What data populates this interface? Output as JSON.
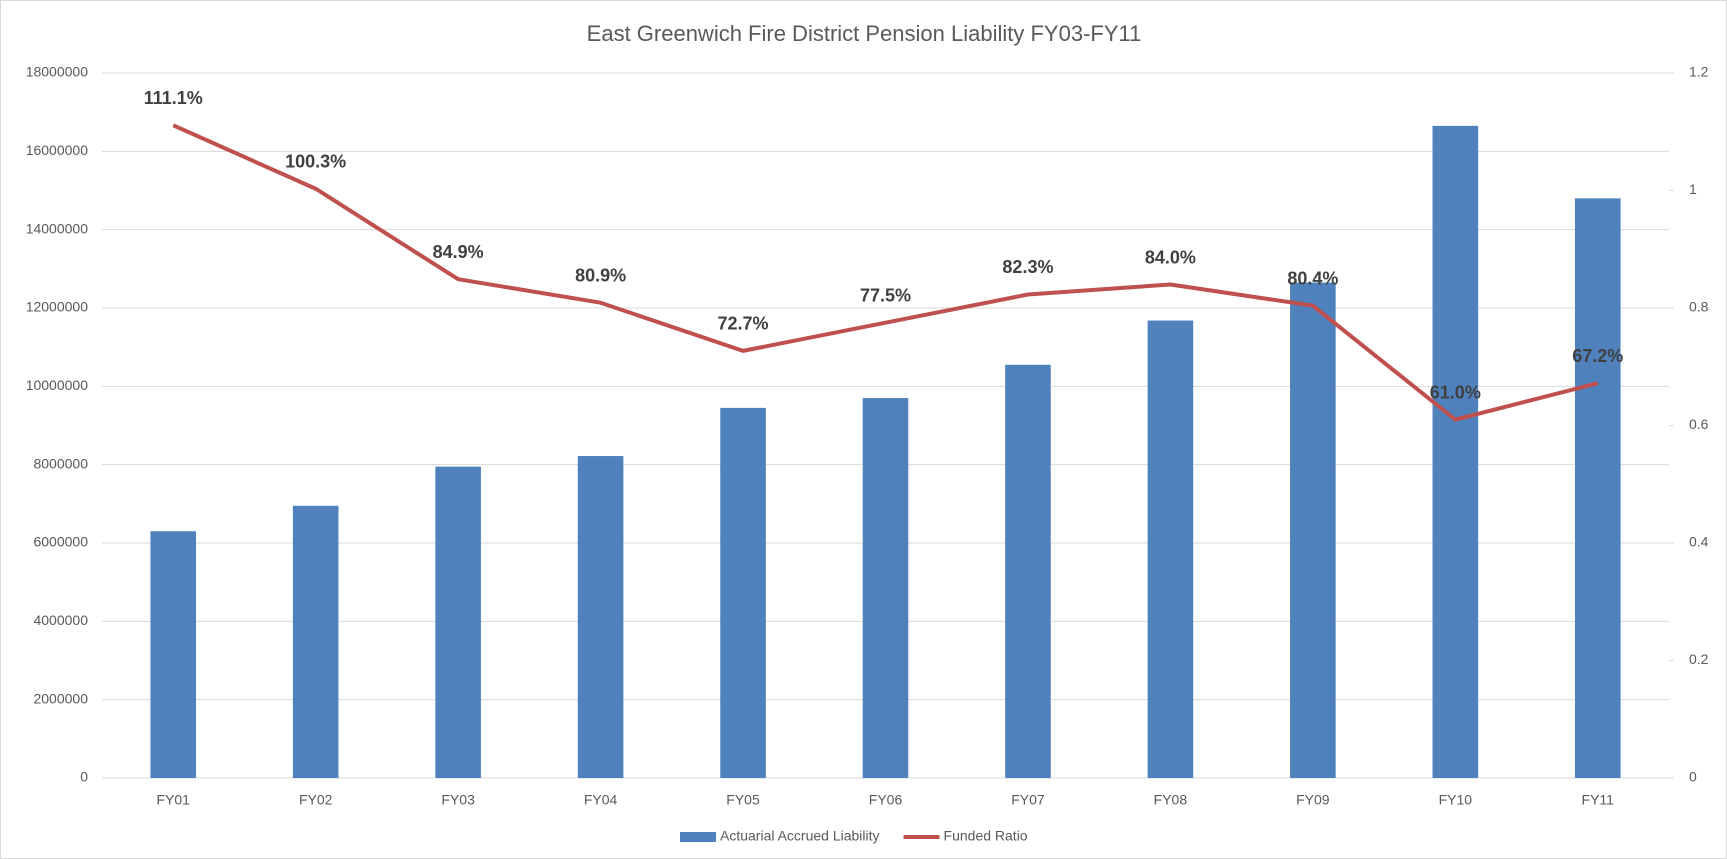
{
  "chart_data": {
    "type": "bar_line",
    "title": "East Greenwich Fire District Pension Liability FY03-FY11",
    "categories": [
      "FY01",
      "FY02",
      "FY03",
      "FY04",
      "FY05",
      "FY06",
      "FY07",
      "FY08",
      "FY09",
      "FY10",
      "FY11"
    ],
    "series": [
      {
        "name": "Actuarial Accrued Liability",
        "type": "bar",
        "color": "#4f81bd",
        "values": [
          6300000,
          6950000,
          7950000,
          8220000,
          9450000,
          9700000,
          10550000,
          11680000,
          12650000,
          16650000,
          14800000
        ]
      },
      {
        "name": "Funded Ratio",
        "type": "line",
        "axis": "y2",
        "color": "#c0504d",
        "values": [
          1.111,
          1.003,
          0.849,
          0.809,
          0.727,
          0.775,
          0.823,
          0.84,
          0.804,
          0.61,
          0.672
        ],
        "value_labels": [
          "111.1%",
          "100.3%",
          "84.9%",
          "80.9%",
          "72.7%",
          "77.5%",
          "82.3%",
          "84.0%",
          "80.4%",
          "61.0%",
          "67.2%"
        ]
      }
    ],
    "ylim": [
      0,
      18000000
    ],
    "yticks": [
      0,
      2000000,
      4000000,
      6000000,
      8000000,
      10000000,
      12000000,
      14000000,
      16000000,
      18000000
    ],
    "y2lim": [
      0,
      1.2
    ],
    "y2ticks": [
      0,
      0.2,
      0.4,
      0.6,
      0.8,
      1,
      1.2
    ],
    "grid": true,
    "legend": "bottom"
  }
}
